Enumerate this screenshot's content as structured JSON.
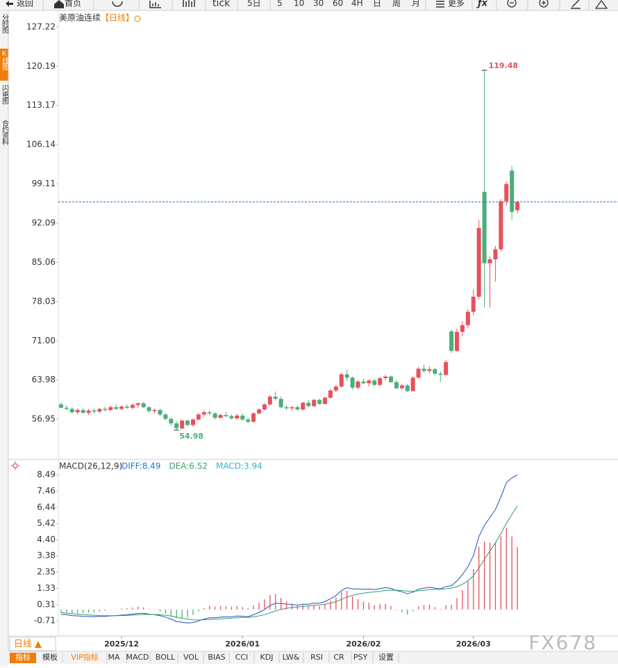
{
  "toolbar": [
    "返回",
    "首页",
    "tick",
    "5日",
    "5",
    "10",
    "30",
    "60",
    "4H",
    "日",
    "周",
    "月",
    "更多"
  ],
  "sidebar": [
    "分时图",
    "K线图",
    "闪电图",
    "合约资料"
  ],
  "period_label": "日线 ▲",
  "indicator_tabs": [
    "指标",
    "模板",
    "VIP指标",
    "MA",
    "MACD",
    "BOLL",
    "VOL",
    "BIAS",
    "CCI",
    "KDJ",
    "LW&",
    "RSI",
    "CR",
    "PSY",
    "设置"
  ],
  "watermark": "FX678",
  "chart_data": [
    {
      "type": "candlestick",
      "title": "美原油连续",
      "subtitle": "【日线】",
      "up_color": "#e8505b",
      "down_color": "#4cae78",
      "ylim": [
        49.86,
        130.2
      ],
      "xlim": [
        -0.5,
        101.3
      ],
      "yticks": [
        127.22,
        120.19,
        113.17,
        106.14,
        99.11,
        92.09,
        85.06,
        78.03,
        {
          "value": 71,
          "label": "71.00"
        },
        63.98,
        56.95
      ],
      "ohlc": [
        [
          59.6,
          60.0,
          58.9,
          59.0
        ],
        [
          59.0,
          59.4,
          58.5,
          58.8
        ],
        [
          58.8,
          59.1,
          57.9,
          58.2
        ],
        [
          58.2,
          58.9,
          57.8,
          58.6
        ],
        [
          58.6,
          58.9,
          57.9,
          58.1
        ],
        [
          58.1,
          58.8,
          57.7,
          58.5
        ],
        [
          58.5,
          58.9,
          58.0,
          58.3
        ],
        [
          58.3,
          59.0,
          58.0,
          58.8
        ],
        [
          58.8,
          59.2,
          58.3,
          58.6
        ],
        [
          58.6,
          59.4,
          58.4,
          59.1
        ],
        [
          59.1,
          59.6,
          58.6,
          58.8
        ],
        [
          58.8,
          59.5,
          58.5,
          59.2
        ],
        [
          59.2,
          59.6,
          58.8,
          59.0
        ],
        [
          59.0,
          59.8,
          58.7,
          59.5
        ],
        [
          59.5,
          60.0,
          59.0,
          59.8
        ],
        [
          59.8,
          60.1,
          58.9,
          59.1
        ],
        [
          59.1,
          59.3,
          58.1,
          58.4
        ],
        [
          58.4,
          58.9,
          58.0,
          58.6
        ],
        [
          58.6,
          58.8,
          57.5,
          57.8
        ],
        [
          57.8,
          58.0,
          56.8,
          57.0
        ],
        [
          57.0,
          57.3,
          55.8,
          56.2
        ],
        [
          56.2,
          56.6,
          54.98,
          55.3
        ],
        [
          55.3,
          56.9,
          55.1,
          56.7
        ],
        [
          56.7,
          56.9,
          55.7,
          55.9
        ],
        [
          55.9,
          57.1,
          55.6,
          56.9
        ],
        [
          56.9,
          58.1,
          56.7,
          57.8
        ],
        [
          57.8,
          58.5,
          57.4,
          58.2
        ],
        [
          58.2,
          58.6,
          57.6,
          58.0
        ],
        [
          58.0,
          58.2,
          56.9,
          57.2
        ],
        [
          57.2,
          58.0,
          57.0,
          57.7
        ],
        [
          57.7,
          58.2,
          57.3,
          57.5
        ],
        [
          57.5,
          57.8,
          56.9,
          57.1
        ],
        [
          57.1,
          57.9,
          56.8,
          57.6
        ],
        [
          57.6,
          58.0,
          56.7,
          56.9
        ],
        [
          56.9,
          57.3,
          56.2,
          56.5
        ],
        [
          56.5,
          58.2,
          56.3,
          58.0
        ],
        [
          58.0,
          58.9,
          57.8,
          58.7
        ],
        [
          58.7,
          59.8,
          58.5,
          59.6
        ],
        [
          59.6,
          61.3,
          59.4,
          61.0
        ],
        [
          61.0,
          61.9,
          60.3,
          60.6
        ],
        [
          60.6,
          61.0,
          58.9,
          59.1
        ],
        [
          59.1,
          59.5,
          58.6,
          58.9
        ],
        [
          58.9,
          59.3,
          58.5,
          59.1
        ],
        [
          59.1,
          59.4,
          58.5,
          58.7
        ],
        [
          58.7,
          60.1,
          58.5,
          59.9
        ],
        [
          59.9,
          60.4,
          59.1,
          59.3
        ],
        [
          59.3,
          60.6,
          59.1,
          60.4
        ],
        [
          60.4,
          60.6,
          59.5,
          59.7
        ],
        [
          59.7,
          61.0,
          59.5,
          60.8
        ],
        [
          60.8,
          62.4,
          60.6,
          62.1
        ],
        [
          62.1,
          63.1,
          61.8,
          62.8
        ],
        [
          62.8,
          65.3,
          62.6,
          65.0
        ],
        [
          65.0,
          65.8,
          63.8,
          64.4
        ],
        [
          64.4,
          64.6,
          62.2,
          62.6
        ],
        [
          62.6,
          64.0,
          62.3,
          63.7
        ],
        [
          63.7,
          64.3,
          63.2,
          63.4
        ],
        [
          63.4,
          64.1,
          62.8,
          63.9
        ],
        [
          63.9,
          64.2,
          62.9,
          63.1
        ],
        [
          63.1,
          64.6,
          62.9,
          64.3
        ],
        [
          64.3,
          64.9,
          63.9,
          64.6
        ],
        [
          64.6,
          64.8,
          63.4,
          63.6
        ],
        [
          63.6,
          64.0,
          62.3,
          62.5
        ],
        [
          62.5,
          63.3,
          62.2,
          63.0
        ],
        [
          63.0,
          63.3,
          61.8,
          62.0
        ],
        [
          62.0,
          64.7,
          61.9,
          64.4
        ],
        [
          64.4,
          66.3,
          64.2,
          66.0
        ],
        [
          66.0,
          66.7,
          65.3,
          65.6
        ],
        [
          65.6,
          66.4,
          65.2,
          65.9
        ],
        [
          65.9,
          66.2,
          64.8,
          65.1
        ],
        [
          65.1,
          65.5,
          63.6,
          64.9
        ],
        [
          64.9,
          67.6,
          64.6,
          67.2
        ],
        [
          72.7,
          73.0,
          68.8,
          69.2
        ],
        [
          69.2,
          73.2,
          69.0,
          72.6
        ],
        [
          72.6,
          74.5,
          71.8,
          73.8
        ],
        [
          73.8,
          76.7,
          73.3,
          76.2
        ],
        [
          76.2,
          80.2,
          75.5,
          78.9
        ],
        [
          78.9,
          92.6,
          78.4,
          91.2
        ],
        [
          97.7,
          119.48,
          77.0,
          84.9
        ],
        [
          84.9,
          86.1,
          76.9,
          85.6
        ],
        [
          85.6,
          88.0,
          81.6,
          87.4
        ],
        [
          87.4,
          96.4,
          87.0,
          96.0
        ],
        [
          96.0,
          99.5,
          95.2,
          99.1
        ],
        [
          101.5,
          102.3,
          92.7,
          94.1
        ],
        [
          94.4,
          96.1,
          93.9,
          95.88
        ]
      ]
    },
    {
      "type": "macd",
      "title": "MACD(26,12,9)",
      "ylim": [
        -1.67,
        9.37
      ],
      "xlim": [
        -0.5,
        101.3
      ],
      "yticks": [
        8.49,
        7.46,
        6.44,
        5.42,
        {
          "value": 4.4,
          "label": "4.40"
        },
        3.38,
        2.35,
        1.33,
        0.31,
        -0.71
      ],
      "xticks": [
        {
          "value": 11,
          "label": "2025/12"
        },
        {
          "value": 33,
          "label": "2026/01"
        },
        {
          "value": 55,
          "label": "2026/02"
        },
        {
          "value": 75,
          "label": "2026/03"
        }
      ],
      "series": [
        {
          "name": "DIFF:8.49",
          "color": "#2a78c8",
          "line_color": "#1f4fb8",
          "values": [
            -0.3,
            -0.33,
            -0.38,
            -0.4,
            -0.43,
            -0.44,
            -0.45,
            -0.44,
            -0.43,
            -0.4,
            -0.38,
            -0.35,
            -0.33,
            -0.29,
            -0.24,
            -0.24,
            -0.29,
            -0.32,
            -0.39,
            -0.48,
            -0.6,
            -0.76,
            -0.8,
            -0.85,
            -0.82,
            -0.72,
            -0.6,
            -0.52,
            -0.52,
            -0.48,
            -0.46,
            -0.45,
            -0.41,
            -0.42,
            -0.45,
            -0.33,
            -0.18,
            0.0,
            0.25,
            0.4,
            0.38,
            0.34,
            0.32,
            0.28,
            0.34,
            0.33,
            0.4,
            0.4,
            0.5,
            0.68,
            0.88,
            1.2,
            1.38,
            1.3,
            1.3,
            1.28,
            1.3,
            1.25,
            1.32,
            1.38,
            1.33,
            1.2,
            1.12,
            1.0,
            1.1,
            1.28,
            1.35,
            1.4,
            1.35,
            1.3,
            1.45,
            1.5,
            1.8,
            2.2,
            2.7,
            3.4,
            4.6,
            5.3,
            5.8,
            6.3,
            7.1,
            8.0,
            8.3,
            8.49
          ]
        },
        {
          "name": "DEA:6.52",
          "color": "#3aa36e",
          "line_color": "#2e9a6a",
          "values": [
            -0.2,
            -0.23,
            -0.26,
            -0.29,
            -0.32,
            -0.34,
            -0.36,
            -0.38,
            -0.39,
            -0.39,
            -0.39,
            -0.38,
            -0.37,
            -0.35,
            -0.33,
            -0.31,
            -0.31,
            -0.31,
            -0.33,
            -0.36,
            -0.41,
            -0.48,
            -0.54,
            -0.6,
            -0.65,
            -0.66,
            -0.65,
            -0.63,
            -0.61,
            -0.59,
            -0.56,
            -0.54,
            -0.52,
            -0.5,
            -0.49,
            -0.46,
            -0.4,
            -0.32,
            -0.21,
            -0.09,
            0.01,
            0.08,
            0.13,
            0.16,
            0.2,
            0.23,
            0.26,
            0.29,
            0.33,
            0.4,
            0.5,
            0.64,
            0.79,
            0.89,
            0.97,
            1.03,
            1.08,
            1.11,
            1.15,
            1.2,
            1.22,
            1.22,
            1.2,
            1.16,
            1.15,
            1.18,
            1.21,
            1.25,
            1.27,
            1.28,
            1.31,
            1.35,
            1.44,
            1.59,
            1.81,
            2.13,
            2.62,
            3.16,
            3.69,
            4.21,
            4.79,
            5.43,
            6.0,
            6.52
          ]
        },
        {
          "name": "MACD:3.94",
          "color": "#3bb0c9",
          "up_color": "#e8505b",
          "down_color": "#4cae78",
          "values": [
            -0.2,
            -0.2,
            -0.24,
            -0.22,
            -0.22,
            -0.2,
            -0.18,
            -0.12,
            -0.08,
            -0.02,
            0.02,
            0.06,
            0.08,
            0.12,
            0.18,
            0.14,
            0.04,
            -0.02,
            -0.12,
            -0.24,
            -0.38,
            -0.56,
            -0.52,
            -0.5,
            -0.34,
            -0.12,
            0.1,
            0.22,
            0.18,
            0.22,
            0.2,
            0.18,
            0.22,
            0.16,
            0.08,
            0.26,
            0.44,
            0.64,
            0.92,
            0.98,
            0.74,
            0.52,
            0.38,
            0.24,
            0.28,
            0.2,
            0.28,
            0.22,
            0.34,
            0.56,
            0.76,
            1.12,
            1.18,
            0.82,
            0.66,
            0.5,
            0.44,
            0.28,
            0.34,
            0.36,
            0.22,
            -0.04,
            -0.16,
            -0.32,
            -0.1,
            0.2,
            0.28,
            0.3,
            0.16,
            0.04,
            0.28,
            0.3,
            0.72,
            1.22,
            1.78,
            2.54,
            3.96,
            4.28,
            4.22,
            4.18,
            4.62,
            5.14,
            4.6,
            3.94
          ]
        }
      ]
    }
  ]
}
